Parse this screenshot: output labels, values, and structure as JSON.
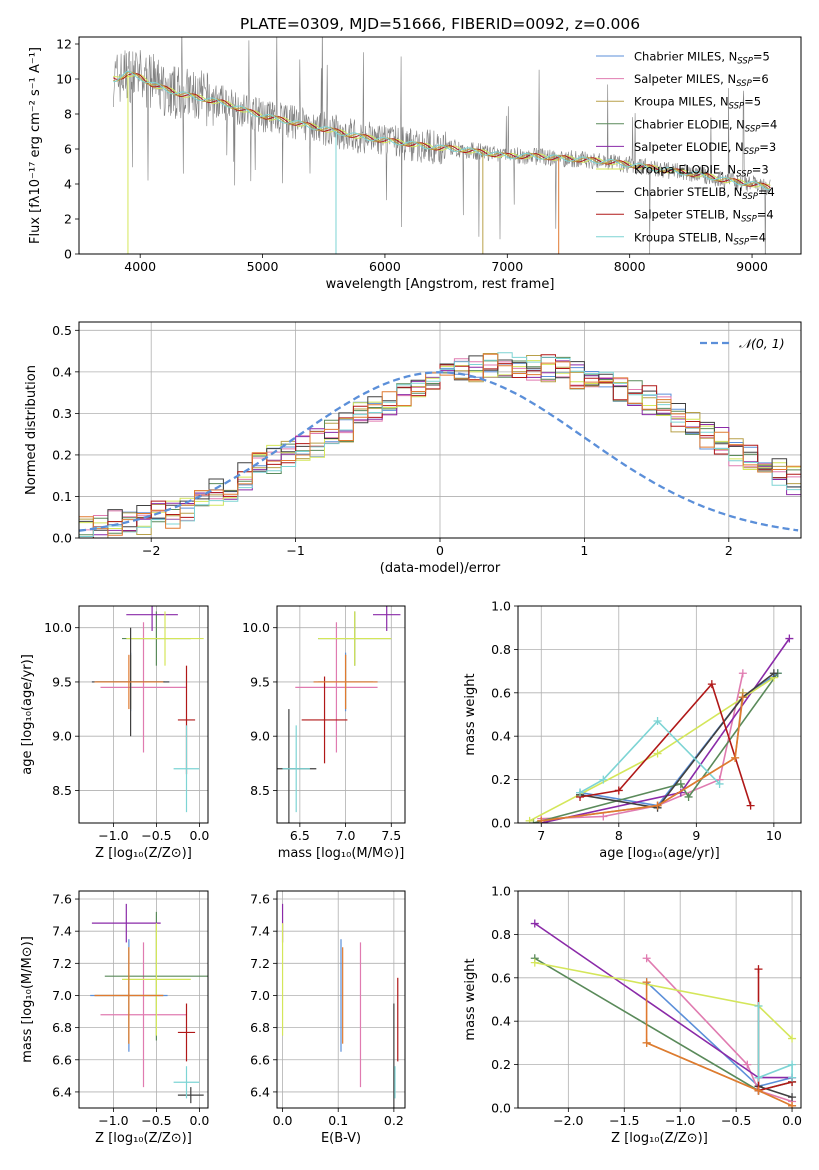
{
  "figure": {
    "title": "PLATE=0309, MJD=51666, FIBERID=0092, z=0.006"
  },
  "colors": {
    "Chabrier MILES": "#5b8fd9",
    "Salpeter MILES": "#e07bb0",
    "Kroupa MILES": "#b8a04a",
    "Chabrier ELODIE": "#5a8a5a",
    "Salpeter ELODIE": "#8a2aa8",
    "Kroupa ELODIE": "#d4e65a",
    "Chabrier STELIB": "#404040",
    "Salpeter STELIB": "#b01818",
    "Kroupa STELIB": "#7dd4d4",
    "data": "#808080",
    "orange": "#e07a30"
  },
  "chart_data": [
    {
      "id": "spectrum",
      "type": "line",
      "xlabel": "wavelength [Angstrom, rest frame]",
      "ylabel": "Flux [fλ10⁻¹⁷ erg cm⁻² s⁻¹ A⁻¹]",
      "xlim": [
        3500,
        9400
      ],
      "ylim": [
        0,
        12.4
      ],
      "xticks": [
        4000,
        5000,
        6000,
        7000,
        8000,
        9000
      ],
      "yticks": [
        0,
        2,
        4,
        6,
        8,
        10,
        12
      ],
      "legend_position": "top-right",
      "legend": [
        {
          "name": "Chabrier MILES, N",
          "sub": "SSP",
          "eq": "=5"
        },
        {
          "name": "Salpeter MILES, N",
          "sub": "SSP",
          "eq": "=6"
        },
        {
          "name": "Kroupa MILES, N",
          "sub": "SSP",
          "eq": "=5"
        },
        {
          "name": "Chabrier ELODIE, N",
          "sub": "SSP",
          "eq": "=4"
        },
        {
          "name": "Salpeter ELODIE, N",
          "sub": "SSP",
          "eq": "=3"
        },
        {
          "name": "Kroupa ELODIE, N",
          "sub": "SSP",
          "eq": "=3"
        },
        {
          "name": "Chabrier STELIB, N",
          "sub": "SSP",
          "eq": "=4"
        },
        {
          "name": "Salpeter STELIB, N",
          "sub": "SSP",
          "eq": "=4"
        },
        {
          "name": "Kroupa STELIB, N",
          "sub": "SSP",
          "eq": "=4"
        }
      ],
      "continuum": [
        [
          3800,
          10.0
        ],
        [
          3900,
          10.3
        ],
        [
          4000,
          10.1
        ],
        [
          4100,
          9.7
        ],
        [
          4300,
          9.2
        ],
        [
          4500,
          8.9
        ],
        [
          4700,
          8.6
        ],
        [
          4900,
          8.1
        ],
        [
          5000,
          7.9
        ],
        [
          5200,
          7.6
        ],
        [
          5400,
          7.3
        ],
        [
          5600,
          7.0
        ],
        [
          5800,
          6.7
        ],
        [
          6000,
          6.5
        ],
        [
          6200,
          6.3
        ],
        [
          6400,
          6.1
        ],
        [
          6600,
          6.0
        ],
        [
          6800,
          5.8
        ],
        [
          7000,
          5.6
        ],
        [
          7200,
          5.6
        ],
        [
          7400,
          5.5
        ],
        [
          7600,
          5.4
        ],
        [
          7800,
          5.3
        ],
        [
          8000,
          5.1
        ],
        [
          8200,
          4.9
        ],
        [
          8400,
          4.7
        ],
        [
          8600,
          4.5
        ],
        [
          8800,
          4.2
        ],
        [
          9000,
          4.0
        ],
        [
          9150,
          3.8
        ]
      ],
      "model_drops": [
        {
          "color": "Kroupa ELODIE",
          "x": 3900,
          "to": 0
        },
        {
          "color": "Kroupa STELIB",
          "x": 5600,
          "to": 0
        },
        {
          "color": "Kroupa MILES",
          "x": 6800,
          "to": 0
        },
        {
          "color": "orange",
          "x": 7420,
          "to": 0
        }
      ]
    },
    {
      "id": "residuals",
      "type": "histogram",
      "xlabel": "(data-model)/error",
      "ylabel": "Normed distribution",
      "xlim": [
        -2.5,
        2.5
      ],
      "ylim": [
        0,
        0.52
      ],
      "xticks": [
        -2,
        -1,
        0,
        1,
        2
      ],
      "yticks": [
        0.0,
        0.1,
        0.2,
        0.3,
        0.4,
        0.5
      ],
      "legend_position": "top-right",
      "reference_label": "𝒩(0, 1)",
      "bin_width": 0.1,
      "bin_start": -2.5,
      "base": [
        0.018,
        0.025,
        0.033,
        0.04,
        0.044,
        0.052,
        0.06,
        0.074,
        0.095,
        0.11,
        0.125,
        0.145,
        0.17,
        0.19,
        0.2,
        0.215,
        0.23,
        0.25,
        0.265,
        0.29,
        0.31,
        0.33,
        0.35,
        0.36,
        0.375,
        0.385,
        0.395,
        0.405,
        0.41,
        0.41,
        0.41,
        0.41,
        0.405,
        0.4,
        0.39,
        0.38,
        0.37,
        0.36,
        0.345,
        0.33,
        0.31,
        0.29,
        0.27,
        0.25,
        0.23,
        0.21,
        0.19,
        0.175,
        0.16,
        0.14,
        0.12,
        0.105,
        0.09,
        0.08,
        0.07,
        0.06,
        0.055,
        0.05,
        0.046,
        0.04,
        0.038,
        0.035,
        0.033,
        0.03,
        0.028,
        0.026,
        0.025,
        0.024,
        0.023,
        0.022
      ]
    },
    {
      "id": "age-vs-Z",
      "type": "errorbar",
      "xlabel": "Z [log₁₀(Z/Z⊙)]",
      "ylabel": "age  [log₁₀(age/yr)]",
      "xlim": [
        -1.4,
        0.1
      ],
      "ylim": [
        8.2,
        10.2
      ],
      "xticks": [
        -1.0,
        -0.5,
        0.0
      ],
      "yticks": [
        8.5,
        9.0,
        9.5,
        10.0
      ],
      "points": [
        {
          "c": "Chabrier MILES",
          "x": -0.8,
          "y": 9.5,
          "xe": 0.45,
          "ye": 0.27
        },
        {
          "c": "Salpeter MILES",
          "x": -0.65,
          "y": 9.45,
          "xe": 0.5,
          "ye": 0.6
        },
        {
          "c": "Kroupa MILES",
          "x": -0.8,
          "y": 9.5,
          "xe": 0.4,
          "ye": 0.25
        },
        {
          "c": "Chabrier ELODIE",
          "x": -0.5,
          "y": 9.9,
          "xe": 0.4,
          "ye": 0.25
        },
        {
          "c": "Salpeter ELODIE",
          "x": -0.55,
          "y": 10.12,
          "xe": 0.3,
          "ye": 0.15
        },
        {
          "c": "Kroupa ELODIE",
          "x": -0.4,
          "y": 9.9,
          "xe": 0.45,
          "ye": 0.25
        },
        {
          "c": "Chabrier STELIB",
          "x": -0.8,
          "y": 9.5,
          "xe": 0.45,
          "ye": 0.5
        },
        {
          "c": "Salpeter STELIB",
          "x": -0.15,
          "y": 9.15,
          "xe": 0.1,
          "ye": 0.5
        },
        {
          "c": "Kroupa STELIB",
          "x": -0.15,
          "y": 8.7,
          "xe": 0.15,
          "ye": 0.4
        },
        {
          "c": "orange",
          "x": -0.82,
          "y": 9.5,
          "xe": 0.4,
          "ye": 0.25
        }
      ]
    },
    {
      "id": "age-vs-mass",
      "type": "errorbar",
      "xlabel": "mass [log₁₀(M/M⊙)]",
      "ylabel": "",
      "xlim": [
        6.25,
        7.65
      ],
      "ylim": [
        8.2,
        10.2
      ],
      "xticks": [
        6.5,
        7.0,
        7.5
      ],
      "yticks": [
        8.5,
        9.0,
        9.5,
        10.0
      ],
      "points": [
        {
          "c": "Chabrier MILES",
          "x": 7.0,
          "y": 9.5,
          "xe": 0.35,
          "ye": 0.27
        },
        {
          "c": "Salpeter MILES",
          "x": 6.9,
          "y": 9.45,
          "xe": 0.45,
          "ye": 0.6
        },
        {
          "c": "Kroupa MILES",
          "x": 7.0,
          "y": 9.5,
          "xe": 0.3,
          "ye": 0.25
        },
        {
          "c": "Chabrier ELODIE",
          "x": 7.1,
          "y": 9.9,
          "xe": 0.4,
          "ye": 0.25
        },
        {
          "c": "Salpeter ELODIE",
          "x": 7.45,
          "y": 10.12,
          "xe": 0.15,
          "ye": 0.15
        },
        {
          "c": "Kroupa ELODIE",
          "x": 7.1,
          "y": 9.9,
          "xe": 0.4,
          "ye": 0.25
        },
        {
          "c": "Chabrier STELIB",
          "x": 6.38,
          "y": 8.7,
          "xe": 0.3,
          "ye": 0.55
        },
        {
          "c": "Salpeter STELIB",
          "x": 6.77,
          "y": 9.15,
          "xe": 0.25,
          "ye": 0.4
        },
        {
          "c": "Kroupa STELIB",
          "x": 6.46,
          "y": 8.7,
          "xe": 0.15,
          "ye": 0.4
        },
        {
          "c": "orange",
          "x": 7.0,
          "y": 9.5,
          "xe": 0.35,
          "ye": 0.25
        }
      ]
    },
    {
      "id": "weight-vs-age",
      "type": "line",
      "xlabel": "age  [log₁₀(age/yr)]",
      "ylabel": "mass weight",
      "xlim": [
        6.7,
        10.35
      ],
      "ylim": [
        0,
        1.0
      ],
      "xticks": [
        7,
        8,
        9,
        10
      ],
      "yticks": [
        0.0,
        0.2,
        0.4,
        0.6,
        0.8,
        1.0
      ],
      "series": [
        {
          "c": "Chabrier MILES",
          "pts": [
            [
              7.5,
              0.14
            ],
            [
              8.5,
              0.08
            ],
            [
              9.6,
              0.58
            ],
            [
              10.05,
              0.69
            ]
          ]
        },
        {
          "c": "Salpeter MILES",
          "pts": [
            [
              7.0,
              0.02
            ],
            [
              7.8,
              0.03
            ],
            [
              8.5,
              0.08
            ],
            [
              9.3,
              0.2
            ],
            [
              9.6,
              0.69
            ]
          ]
        },
        {
          "c": "Kroupa MILES",
          "pts": [
            [
              7.0,
              0.01
            ],
            [
              8.5,
              0.08
            ],
            [
              9.5,
              0.3
            ],
            [
              9.6,
              0.6
            ]
          ]
        },
        {
          "c": "Chabrier ELODIE",
          "pts": [
            [
              6.9,
              0.0
            ],
            [
              8.8,
              0.18
            ],
            [
              8.9,
              0.12
            ],
            [
              10.05,
              0.69
            ]
          ]
        },
        {
          "c": "Salpeter ELODIE",
          "pts": [
            [
              7.0,
              0.0
            ],
            [
              8.8,
              0.14
            ],
            [
              10.2,
              0.85
            ]
          ]
        },
        {
          "c": "Kroupa ELODIE",
          "pts": [
            [
              6.85,
              0.01
            ],
            [
              8.5,
              0.32
            ],
            [
              10.0,
              0.67
            ]
          ]
        },
        {
          "c": "Chabrier STELIB",
          "pts": [
            [
              7.5,
              0.13
            ],
            [
              8.5,
              0.07
            ],
            [
              9.6,
              0.58
            ],
            [
              10.0,
              0.69
            ]
          ]
        },
        {
          "c": "Salpeter STELIB",
          "pts": [
            [
              7.5,
              0.12
            ],
            [
              8.0,
              0.15
            ],
            [
              9.2,
              0.64
            ],
            [
              9.7,
              0.08
            ]
          ]
        },
        {
          "c": "Kroupa STELIB",
          "pts": [
            [
              7.5,
              0.14
            ],
            [
              7.8,
              0.2
            ],
            [
              8.5,
              0.47
            ],
            [
              9.3,
              0.18
            ]
          ]
        },
        {
          "c": "orange",
          "pts": [
            [
              7.0,
              0.01
            ],
            [
              8.5,
              0.08
            ],
            [
              9.5,
              0.3
            ],
            [
              9.6,
              0.58
            ]
          ]
        }
      ]
    },
    {
      "id": "mass-vs-Z",
      "type": "errorbar",
      "xlabel": "Z [log₁₀(Z/Z⊙)]",
      "ylabel": "mass [log₁₀(M/M⊙)]",
      "xlim": [
        -1.4,
        0.1
      ],
      "ylim": [
        6.3,
        7.65
      ],
      "xticks": [
        -1.0,
        -0.5,
        0.0
      ],
      "yticks": [
        6.4,
        6.6,
        6.8,
        7.0,
        7.2,
        7.4,
        7.6
      ],
      "points": [
        {
          "c": "Chabrier MILES",
          "x": -0.82,
          "y": 7.0,
          "xe": 0.45,
          "ye": 0.35
        },
        {
          "c": "Salpeter MILES",
          "x": -0.65,
          "y": 6.88,
          "xe": 0.5,
          "ye": 0.45
        },
        {
          "c": "Kroupa MILES",
          "x": -0.82,
          "y": 7.0,
          "xe": 0.4,
          "ye": 0.3
        },
        {
          "c": "Chabrier ELODIE",
          "x": -0.5,
          "y": 7.12,
          "xe": 0.6,
          "ye": 0.4
        },
        {
          "c": "Salpeter ELODIE",
          "x": -0.85,
          "y": 7.45,
          "xe": 0.4,
          "ye": 0.12
        },
        {
          "c": "Kroupa ELODIE",
          "x": -0.5,
          "y": 7.1,
          "xe": 0.4,
          "ye": 0.35
        },
        {
          "c": "Chabrier STELIB",
          "x": -0.1,
          "y": 6.38,
          "xe": 0.15,
          "ye": 0.05
        },
        {
          "c": "Salpeter STELIB",
          "x": -0.15,
          "y": 6.77,
          "xe": 0.1,
          "ye": 0.18
        },
        {
          "c": "Kroupa STELIB",
          "x": -0.15,
          "y": 6.46,
          "xe": 0.15,
          "ye": 0.1
        },
        {
          "c": "orange",
          "x": -0.82,
          "y": 7.0,
          "xe": 0.4,
          "ye": 0.3
        }
      ]
    },
    {
      "id": "mass-vs-ebv",
      "type": "errorbar",
      "xlabel": "E(B-V)",
      "ylabel": "",
      "xlim": [
        -0.01,
        0.22
      ],
      "ylim": [
        6.3,
        7.65
      ],
      "xticks": [
        0.0,
        0.1,
        0.2
      ],
      "yticks": [
        6.4,
        6.6,
        6.8,
        7.0,
        7.2,
        7.4,
        7.6
      ],
      "points": [
        {
          "c": "Salpeter ELODIE",
          "x": 0.0,
          "y": 7.45,
          "xe": 0,
          "ye": 0.12
        },
        {
          "c": "Kroupa ELODIE",
          "x": 0.0,
          "y": 7.1,
          "xe": 0,
          "ye": 0.35
        },
        {
          "c": "Chabrier MILES",
          "x": 0.105,
          "y": 7.0,
          "xe": 0,
          "ye": 0.35
        },
        {
          "c": "orange",
          "x": 0.108,
          "y": 7.0,
          "xe": 0,
          "ye": 0.3
        },
        {
          "c": "Salpeter MILES",
          "x": 0.14,
          "y": 6.88,
          "xe": 0,
          "ye": 0.45
        },
        {
          "c": "Chabrier STELIB",
          "x": 0.2,
          "y": 6.6,
          "xe": 0,
          "ye": 0.35
        },
        {
          "c": "Kroupa STELIB",
          "x": 0.202,
          "y": 6.46,
          "xe": 0,
          "ye": 0.1
        },
        {
          "c": "Salpeter STELIB",
          "x": 0.207,
          "y": 6.85,
          "xe": 0,
          "ye": 0.26
        }
      ]
    },
    {
      "id": "weight-vs-Z",
      "type": "line",
      "xlabel": "Z [log₁₀(Z/Z⊙)]",
      "ylabel": "mass weight",
      "xlim": [
        -2.45,
        0.08
      ],
      "ylim": [
        0,
        1.0
      ],
      "xticks": [
        -2.0,
        -1.5,
        -1.0,
        -0.5,
        0.0
      ],
      "yticks": [
        0.0,
        0.2,
        0.4,
        0.6,
        0.8,
        1.0
      ],
      "series": [
        {
          "c": "Chabrier MILES",
          "pts": [
            [
              -1.3,
              0.58
            ],
            [
              -0.3,
              0.1
            ],
            [
              0.0,
              0.14
            ]
          ]
        },
        {
          "c": "Salpeter MILES",
          "pts": [
            [
              -1.3,
              0.69
            ],
            [
              -0.4,
              0.2
            ],
            [
              -0.3,
              0.08
            ],
            [
              0.0,
              0.03
            ]
          ]
        },
        {
          "c": "Kroupa MILES",
          "pts": [
            [
              -1.3,
              0.3
            ],
            [
              -0.3,
              0.08
            ],
            [
              0.0,
              0.01
            ]
          ]
        },
        {
          "c": "Chabrier ELODIE",
          "pts": [
            [
              -2.3,
              0.69
            ],
            [
              -0.3,
              0.08
            ],
            [
              0.0,
              0.12
            ]
          ]
        },
        {
          "c": "Salpeter ELODIE",
          "pts": [
            [
              -2.3,
              0.85
            ],
            [
              -0.3,
              0.14
            ],
            [
              0.0,
              0.14
            ]
          ]
        },
        {
          "c": "Kroupa ELODIE",
          "pts": [
            [
              -2.3,
              0.67
            ],
            [
              -0.3,
              0.47
            ],
            [
              0.0,
              0.32
            ]
          ]
        },
        {
          "c": "Chabrier STELIB",
          "pts": [
            [
              -0.3,
              0.1
            ],
            [
              0.0,
              0.05
            ]
          ]
        },
        {
          "c": "Salpeter STELIB",
          "pts": [
            [
              -0.3,
              0.64
            ],
            [
              -0.3,
              0.08
            ],
            [
              0.0,
              0.12
            ]
          ]
        },
        {
          "c": "Kroupa STELIB",
          "pts": [
            [
              -0.3,
              0.47
            ],
            [
              -0.3,
              0.14
            ],
            [
              0.0,
              0.2
            ],
            [
              0.0,
              0.14
            ]
          ]
        },
        {
          "c": "orange",
          "pts": [
            [
              -1.3,
              0.58
            ],
            [
              -1.3,
              0.3
            ],
            [
              -0.3,
              0.08
            ],
            [
              0.0,
              0.01
            ]
          ]
        }
      ]
    }
  ]
}
